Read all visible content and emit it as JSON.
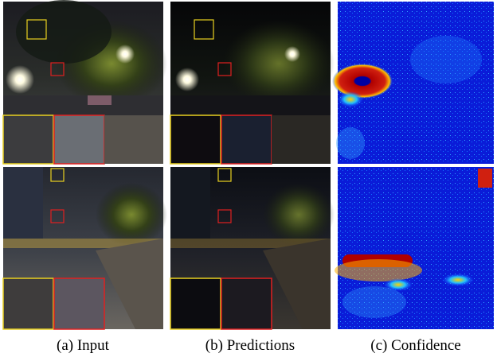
{
  "figure": {
    "captions": [
      "(a) Input",
      "(b) Predictions",
      "(c) Confidence"
    ]
  }
}
